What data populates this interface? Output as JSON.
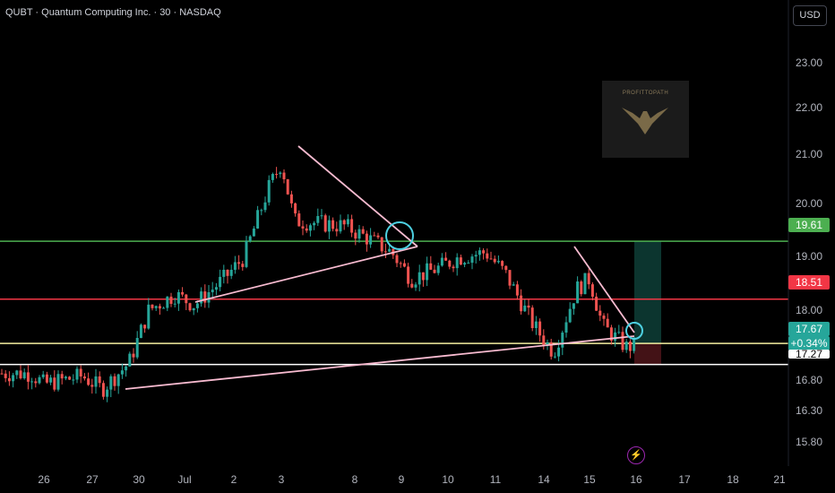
{
  "header": {
    "title": "QUBT · Quantum Computing Inc. · 30 · NASDAQ",
    "currency": "USD"
  },
  "price_axis": {
    "ticks": [
      "23.00",
      "22.00",
      "21.00",
      "20.00",
      "19.00",
      "18.00",
      "16.80",
      "16.30",
      "15.80"
    ]
  },
  "time_axis": {
    "ticks": [
      "26",
      "27",
      "30",
      "Jul",
      "2",
      "3",
      "8",
      "9",
      "10",
      "11",
      "14",
      "15",
      "16",
      "17",
      "18",
      "21"
    ]
  },
  "price_labels": {
    "green_level": "19.61",
    "red_level": "18.51",
    "current_price": "17.67",
    "change": "+0.34%",
    "white_level": "17.27"
  },
  "watermark": {
    "text": "PROFITTOPATH"
  },
  "colors": {
    "up": "#26a69a",
    "down": "#ef5350",
    "green_line": "#4caf50",
    "red_line": "#f23645",
    "yellow_line": "#f5f0a0",
    "trend_line": "#f8bbd0",
    "circle": "#4dd0e1"
  },
  "icons": {
    "flash": "lightning-icon"
  },
  "chart_data": {
    "type": "candlestick",
    "title": "QUBT · Quantum Computing Inc. · 30 · NASDAQ",
    "ylim": [
      15.6,
      23.3
    ],
    "horizontal_levels": [
      19.61,
      18.51,
      17.67,
      17.27
    ],
    "close_path": [
      [
        "26",
        17.1
      ],
      [
        "26",
        16.9
      ],
      [
        "26",
        16.95
      ],
      [
        "27",
        17.05
      ],
      [
        "27",
        16.8
      ],
      [
        "30",
        17.3
      ],
      [
        "30",
        18.3
      ],
      [
        "Jul",
        18.6
      ],
      [
        "Jul",
        18.4
      ],
      [
        "2",
        18.9
      ],
      [
        "2",
        19.3
      ],
      [
        "3",
        20.6
      ],
      [
        "3",
        21.1
      ],
      [
        "3",
        20.0
      ],
      [
        "8",
        19.9
      ],
      [
        "8",
        19.7
      ],
      [
        "9",
        19.4
      ],
      [
        "9",
        18.9
      ],
      [
        "10",
        19.1
      ],
      [
        "10",
        19.3
      ],
      [
        "11",
        19.4
      ],
      [
        "11",
        19.0
      ],
      [
        "14",
        18.0
      ],
      [
        "14",
        17.5
      ],
      [
        "15",
        18.7
      ],
      [
        "15",
        18.9
      ],
      [
        "15",
        18.0
      ],
      [
        "16",
        17.6
      ],
      [
        "16",
        17.67
      ]
    ]
  }
}
